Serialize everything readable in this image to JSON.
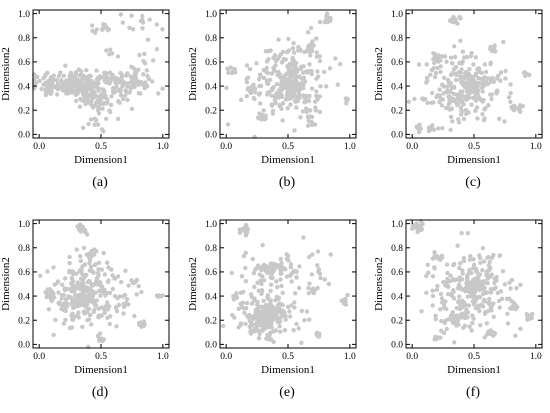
{
  "figure": {
    "point_color": "#c8c8c8",
    "axis_color": "#000000"
  },
  "chart_data": [
    {
      "type": "scatter",
      "caption": "(a)",
      "xlabel": "Dimension1",
      "ylabel": "Dimension2",
      "xlim": [
        -0.05,
        1.05
      ],
      "ylim": [
        -0.03,
        1.03
      ],
      "xticks": [
        "0.0",
        "0.5",
        "1.0"
      ],
      "yticks": [
        "0.0",
        "0.2",
        "0.4",
        "0.6",
        "0.8",
        "1.0"
      ],
      "clusters": [
        {
          "cx": 0.35,
          "cy": 0.42,
          "sx": 0.25,
          "sy": 0.05,
          "n": 280
        },
        {
          "cx": 0.45,
          "cy": 0.32,
          "sx": 0.1,
          "sy": 0.06,
          "n": 60
        },
        {
          "cx": 0.5,
          "cy": 0.13,
          "sx": 0.05,
          "sy": 0.06,
          "n": 16
        },
        {
          "cx": 0.7,
          "cy": 0.45,
          "sx": 0.1,
          "sy": 0.05,
          "n": 30
        },
        {
          "cx": 0.5,
          "cy": 0.86,
          "sx": 0.06,
          "sy": 0.02,
          "n": 10
        },
        {
          "cx": 0.78,
          "cy": 0.9,
          "sx": 0.15,
          "sy": 0.06,
          "n": 16
        },
        {
          "cx": 0.85,
          "cy": 0.6,
          "sx": 0.08,
          "sy": 0.06,
          "n": 8
        },
        {
          "cx": 0.62,
          "cy": 0.68,
          "sx": 0.04,
          "sy": 0.03,
          "n": 5
        }
      ]
    },
    {
      "type": "scatter",
      "caption": "(b)",
      "xlabel": "Dimension1",
      "ylabel": "Dimension2",
      "xlim": [
        -0.05,
        1.05
      ],
      "ylim": [
        -0.03,
        1.03
      ],
      "xticks": [
        "0.0",
        "0.5",
        "1.0"
      ],
      "yticks": [
        "0.0",
        "0.2",
        "0.4",
        "0.6",
        "0.8",
        "1.0"
      ],
      "clusters": [
        {
          "cx": 0.5,
          "cy": 0.45,
          "sx": 0.15,
          "sy": 0.16,
          "n": 260
        },
        {
          "cx": 0.52,
          "cy": 0.36,
          "sx": 0.04,
          "sy": 0.04,
          "n": 40
        },
        {
          "cx": 0.2,
          "cy": 0.38,
          "sx": 0.02,
          "sy": 0.02,
          "n": 14
        },
        {
          "cx": 0.05,
          "cy": 0.53,
          "sx": 0.015,
          "sy": 0.015,
          "n": 10
        },
        {
          "cx": 0.82,
          "cy": 0.95,
          "sx": 0.02,
          "sy": 0.02,
          "n": 14
        },
        {
          "cx": 0.97,
          "cy": 0.28,
          "sx": 0.012,
          "sy": 0.012,
          "n": 7
        },
        {
          "cx": 0.3,
          "cy": 0.15,
          "sx": 0.02,
          "sy": 0.02,
          "n": 12
        },
        {
          "cx": 0.68,
          "cy": 0.72,
          "sx": 0.02,
          "sy": 0.02,
          "n": 14
        },
        {
          "cx": 0.68,
          "cy": 0.12,
          "sx": 0.02,
          "sy": 0.02,
          "n": 10
        }
      ]
    },
    {
      "type": "scatter",
      "caption": "(c)",
      "xlabel": "Dimension1",
      "ylabel": "Dimension2",
      "xlim": [
        -0.05,
        1.05
      ],
      "ylim": [
        -0.03,
        1.03
      ],
      "xticks": [
        "0.0",
        "0.5",
        "1.0"
      ],
      "yticks": [
        "0.0",
        "0.2",
        "0.4",
        "0.6",
        "0.8",
        "1.0"
      ],
      "clusters": [
        {
          "cx": 0.42,
          "cy": 0.38,
          "sx": 0.17,
          "sy": 0.15,
          "n": 250
        },
        {
          "cx": 0.48,
          "cy": 0.42,
          "sx": 0.04,
          "sy": 0.04,
          "n": 40
        },
        {
          "cx": 0.35,
          "cy": 0.95,
          "sx": 0.02,
          "sy": 0.02,
          "n": 14
        },
        {
          "cx": 0.92,
          "cy": 0.5,
          "sx": 0.015,
          "sy": 0.015,
          "n": 8
        },
        {
          "cx": 0.85,
          "cy": 0.22,
          "sx": 0.02,
          "sy": 0.02,
          "n": 12
        },
        {
          "cx": 0.05,
          "cy": 0.05,
          "sx": 0.015,
          "sy": 0.015,
          "n": 8
        },
        {
          "cx": 0.15,
          "cy": 0.05,
          "sx": 0.015,
          "sy": 0.015,
          "n": 8
        },
        {
          "cx": 0.2,
          "cy": 0.62,
          "sx": 0.02,
          "sy": 0.02,
          "n": 12
        },
        {
          "cx": 0.65,
          "cy": 0.7,
          "sx": 0.02,
          "sy": 0.02,
          "n": 10
        }
      ]
    },
    {
      "type": "scatter",
      "caption": "(d)",
      "xlabel": "Dimension1",
      "ylabel": "Dimension2",
      "xlim": [
        -0.05,
        1.05
      ],
      "ylim": [
        -0.03,
        1.03
      ],
      "xticks": [
        "0.0",
        "0.5",
        "1.0"
      ],
      "yticks": [
        "0.0",
        "0.2",
        "0.4",
        "0.6",
        "0.8",
        "1.0"
      ],
      "clusters": [
        {
          "cx": 0.38,
          "cy": 0.42,
          "sx": 0.16,
          "sy": 0.15,
          "n": 250
        },
        {
          "cx": 0.38,
          "cy": 0.38,
          "sx": 0.04,
          "sy": 0.04,
          "n": 40
        },
        {
          "cx": 0.35,
          "cy": 0.95,
          "sx": 0.02,
          "sy": 0.02,
          "n": 14
        },
        {
          "cx": 0.42,
          "cy": 0.74,
          "sx": 0.02,
          "sy": 0.02,
          "n": 10
        },
        {
          "cx": 0.82,
          "cy": 0.17,
          "sx": 0.02,
          "sy": 0.02,
          "n": 12
        },
        {
          "cx": 0.97,
          "cy": 0.4,
          "sx": 0.012,
          "sy": 0.012,
          "n": 7
        },
        {
          "cx": 0.5,
          "cy": 0.03,
          "sx": 0.015,
          "sy": 0.015,
          "n": 8
        },
        {
          "cx": 0.1,
          "cy": 0.4,
          "sx": 0.02,
          "sy": 0.02,
          "n": 12
        },
        {
          "cx": 0.7,
          "cy": 0.33,
          "sx": 0.02,
          "sy": 0.02,
          "n": 10
        }
      ]
    },
    {
      "type": "scatter",
      "caption": "(e)",
      "xlabel": "Dimension1",
      "ylabel": "Dimension2",
      "xlim": [
        -0.05,
        1.05
      ],
      "ylim": [
        -0.03,
        1.03
      ],
      "xticks": [
        "0.0",
        "0.5",
        "1.0"
      ],
      "yticks": [
        "0.0",
        "0.2",
        "0.4",
        "0.6",
        "0.8",
        "1.0"
      ],
      "clusters": [
        {
          "cx": 0.32,
          "cy": 0.25,
          "sx": 0.12,
          "sy": 0.11,
          "n": 200
        },
        {
          "cx": 0.32,
          "cy": 0.22,
          "sx": 0.04,
          "sy": 0.04,
          "n": 50
        },
        {
          "cx": 0.45,
          "cy": 0.6,
          "sx": 0.18,
          "sy": 0.09,
          "n": 80
        },
        {
          "cx": 0.35,
          "cy": 0.65,
          "sx": 0.03,
          "sy": 0.03,
          "n": 16
        },
        {
          "cx": 0.15,
          "cy": 0.95,
          "sx": 0.02,
          "sy": 0.02,
          "n": 14
        },
        {
          "cx": 0.95,
          "cy": 0.35,
          "sx": 0.015,
          "sy": 0.015,
          "n": 10
        },
        {
          "cx": 0.75,
          "cy": 0.08,
          "sx": 0.012,
          "sy": 0.012,
          "n": 6
        },
        {
          "cx": 0.7,
          "cy": 0.45,
          "sx": 0.02,
          "sy": 0.02,
          "n": 10
        },
        {
          "cx": 0.08,
          "cy": 0.4,
          "sx": 0.015,
          "sy": 0.015,
          "n": 7
        }
      ]
    },
    {
      "type": "scatter",
      "caption": "(f)",
      "xlabel": "Dimension1",
      "ylabel": "Dimension2",
      "xlim": [
        -0.05,
        1.05
      ],
      "ylim": [
        -0.03,
        1.03
      ],
      "xticks": [
        "0.0",
        "0.5",
        "1.0"
      ],
      "yticks": [
        "0.0",
        "0.2",
        "0.4",
        "0.6",
        "0.8",
        "1.0"
      ],
      "clusters": [
        {
          "cx": 0.45,
          "cy": 0.45,
          "sx": 0.17,
          "sy": 0.17,
          "n": 250
        },
        {
          "cx": 0.5,
          "cy": 0.5,
          "sx": 0.04,
          "sy": 0.04,
          "n": 40
        },
        {
          "cx": 0.05,
          "cy": 0.97,
          "sx": 0.02,
          "sy": 0.02,
          "n": 14
        },
        {
          "cx": 0.95,
          "cy": 0.23,
          "sx": 0.015,
          "sy": 0.015,
          "n": 8
        },
        {
          "cx": 0.82,
          "cy": 0.32,
          "sx": 0.02,
          "sy": 0.02,
          "n": 12
        },
        {
          "cx": 0.2,
          "cy": 0.05,
          "sx": 0.015,
          "sy": 0.015,
          "n": 8
        },
        {
          "cx": 0.65,
          "cy": 0.1,
          "sx": 0.015,
          "sy": 0.015,
          "n": 8
        },
        {
          "cx": 0.22,
          "cy": 0.72,
          "sx": 0.02,
          "sy": 0.02,
          "n": 10
        },
        {
          "cx": 0.35,
          "cy": 0.2,
          "sx": 0.02,
          "sy": 0.02,
          "n": 12
        }
      ]
    }
  ]
}
